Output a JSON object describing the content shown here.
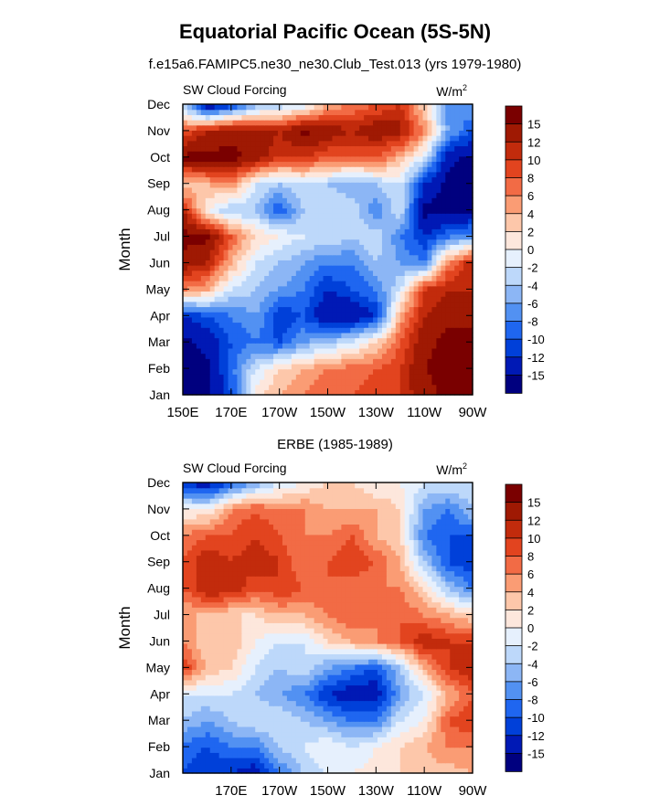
{
  "title": "Equatorial Pacific Ocean (5S-5N)",
  "subtitle": "f.e15a6.FAMIPC5.ne30_ne30.Club_Test.013 (yrs 1979-1980)",
  "panel2_title": "ERBE (1985-1989)",
  "colors": [
    "#00007f",
    "#0019b5",
    "#0040d9",
    "#1f66f0",
    "#5291f2",
    "#8cb6f5",
    "#bdd8fa",
    "#e6f0fd",
    "#fde7dc",
    "#fdc7aa",
    "#fa9c74",
    "#f26b45",
    "#e2441f",
    "#c22b0c",
    "#9f1903",
    "#7a0000"
  ],
  "chart_data": [
    {
      "type": "heatmap",
      "label_left": "SW Cloud Forcing",
      "label_right": "W/m",
      "label_right_sup": "2",
      "ylabel": "Month",
      "y_ticks": [
        "Jan",
        "Feb",
        "Mar",
        "Apr",
        "May",
        "Jun",
        "Jul",
        "Aug",
        "Sep",
        "Oct",
        "Nov",
        "Dec"
      ],
      "x_ticks": [
        "150E",
        "170E",
        "170W",
        "150W",
        "130W",
        "110W",
        "90W"
      ],
      "xlim": [
        150,
        270
      ],
      "x_tick_values": [
        150,
        170,
        190,
        210,
        230,
        250,
        270
      ],
      "colorbar_labels": [
        "15",
        "12",
        "10",
        "8",
        "6",
        "4",
        "2",
        "0",
        "-2",
        "-4",
        "-6",
        "-8",
        "-10",
        "-12",
        "-15"
      ],
      "x": [
        150,
        160,
        170,
        180,
        190,
        200,
        210,
        220,
        230,
        240,
        250,
        260,
        270
      ],
      "values": [
        [
          -16,
          -16,
          -10,
          1,
          4,
          6,
          8,
          8,
          9,
          10,
          14,
          16,
          16
        ],
        [
          -16,
          -16,
          -9,
          -2,
          2,
          4,
          6,
          7,
          8,
          10,
          15,
          16,
          16
        ],
        [
          -16,
          -14,
          -10,
          -8,
          -10,
          -6,
          -4,
          -2,
          2,
          8,
          14,
          16,
          16
        ],
        [
          -12,
          -10,
          -8,
          -6,
          -12,
          -10,
          -15,
          -15,
          -12,
          4,
          12,
          14,
          14
        ],
        [
          6,
          4,
          -2,
          -4,
          -6,
          -8,
          -12,
          -10,
          -8,
          -2,
          10,
          12,
          12
        ],
        [
          14,
          12,
          4,
          -2,
          -4,
          -6,
          -8,
          -8,
          -4,
          -6,
          -8,
          6,
          12
        ],
        [
          16,
          16,
          8,
          2,
          0,
          -2,
          -2,
          -4,
          -2,
          -8,
          -12,
          -8,
          -6
        ],
        [
          12,
          0,
          -4,
          -4,
          -10,
          -4,
          -2,
          -2,
          -8,
          -2,
          -16,
          -16,
          -16
        ],
        [
          2,
          4,
          6,
          -2,
          -4,
          -2,
          -4,
          -6,
          -4,
          -2,
          -12,
          -16,
          -16
        ],
        [
          16,
          16,
          16,
          14,
          10,
          10,
          8,
          8,
          8,
          4,
          -2,
          -14,
          -16
        ],
        [
          8,
          12,
          14,
          14,
          12,
          16,
          14,
          12,
          14,
          13,
          6,
          -6,
          -10
        ],
        [
          -4,
          -16,
          -12,
          -6,
          -4,
          -2,
          4,
          6,
          8,
          10,
          2,
          -8,
          -6
        ]
      ]
    },
    {
      "type": "heatmap",
      "label_left": "SW Cloud Forcing",
      "label_right": "W/m",
      "label_right_sup": "2",
      "ylabel": "Month",
      "y_ticks": [
        "Jan",
        "Feb",
        "Mar",
        "Apr",
        "May",
        "Jun",
        "Jul",
        "Aug",
        "Sep",
        "Oct",
        "Nov",
        "Dec"
      ],
      "x_ticks": [
        "170E",
        "170W",
        "150W",
        "130W",
        "110W",
        "90W"
      ],
      "xlim": [
        150,
        270
      ],
      "x_tick_values": [
        170,
        190,
        210,
        230,
        250,
        270
      ],
      "colorbar_labels": [
        "15",
        "12",
        "10",
        "8",
        "6",
        "4",
        "2",
        "0",
        "-2",
        "-4",
        "-6",
        "-8",
        "-10",
        "-12",
        "-15"
      ],
      "x": [
        150,
        160,
        170,
        180,
        190,
        200,
        210,
        220,
        230,
        240,
        250,
        260,
        270
      ],
      "values": [
        [
          -10,
          -12,
          -12,
          -14,
          -8,
          -4,
          -2,
          0,
          1,
          2,
          3,
          3,
          4
        ],
        [
          -9,
          -10,
          -8,
          -8,
          -4,
          -2,
          0,
          -2,
          0,
          2,
          4,
          6,
          6
        ],
        [
          -4,
          -6,
          -4,
          -2,
          -2,
          -4,
          -6,
          -8,
          -8,
          -2,
          0,
          8,
          10
        ],
        [
          -2,
          -2,
          -2,
          -4,
          -6,
          -8,
          -12,
          -14,
          -14,
          -6,
          -2,
          4,
          8
        ],
        [
          10,
          4,
          2,
          -2,
          -4,
          -2,
          -6,
          -8,
          -10,
          -4,
          4,
          10,
          12
        ],
        [
          6,
          2,
          4,
          0,
          -2,
          -2,
          2,
          4,
          6,
          8,
          12,
          10,
          10
        ],
        [
          4,
          4,
          2,
          2,
          4,
          4,
          6,
          8,
          6,
          8,
          6,
          4,
          2
        ],
        [
          8,
          12,
          12,
          8,
          10,
          8,
          8,
          6,
          6,
          6,
          2,
          -4,
          -8
        ],
        [
          8,
          12,
          10,
          12,
          10,
          6,
          8,
          10,
          8,
          4,
          -4,
          -10,
          -12
        ],
        [
          6,
          8,
          8,
          10,
          8,
          6,
          6,
          8,
          4,
          2,
          -8,
          -10,
          -10
        ],
        [
          0,
          0,
          6,
          8,
          6,
          6,
          4,
          4,
          4,
          2,
          -6,
          -8,
          -4
        ],
        [
          -12,
          -14,
          -10,
          -6,
          -2,
          0,
          2,
          2,
          0,
          0,
          -2,
          -2,
          -2
        ]
      ]
    }
  ]
}
